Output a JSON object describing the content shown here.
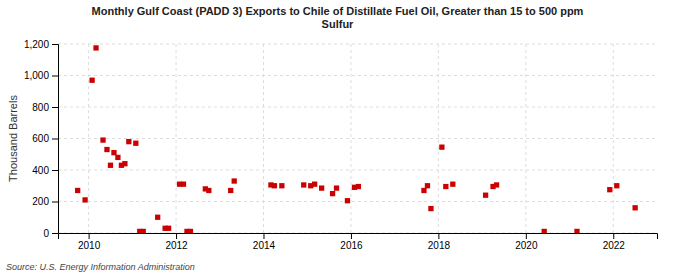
{
  "chart_data": {
    "type": "scatter",
    "title": "Monthly Gulf Coast (PADD 3) Exports to Chile of Distillate Fuel Oil, Greater than 15 to 500 ppm\nSulfur",
    "y_label": "Thousand Barrels",
    "annotations": [
      "Source: U.S. Energy Information Administration"
    ],
    "color": "#cc0000",
    "marker": "square",
    "grid": true,
    "xlim": [
      2009.3,
      2023.0
    ],
    "xticks": [
      2010,
      2012,
      2014,
      2016,
      2018,
      2020,
      2022
    ],
    "ylim": [
      0,
      1200
    ],
    "yticks": [
      0,
      200,
      400,
      600,
      800,
      {
        "value": 1000,
        "label": "1,000"
      },
      {
        "value": 1200,
        "label": "1,200"
      }
    ],
    "x": [
      2009.75,
      2009.92,
      2010.08,
      2010.17,
      2010.33,
      2010.42,
      2010.5,
      2010.58,
      2010.67,
      2010.75,
      2010.83,
      2010.92,
      2011.08,
      2011.17,
      2011.25,
      2011.58,
      2011.75,
      2011.83,
      2012.08,
      2012.17,
      2012.25,
      2012.33,
      2012.67,
      2012.75,
      2013.25,
      2013.33,
      2014.17,
      2014.25,
      2014.42,
      2014.92,
      2015.08,
      2015.17,
      2015.33,
      2015.58,
      2015.67,
      2015.92,
      2016.08,
      2016.17,
      2017.67,
      2017.75,
      2017.83,
      2018.08,
      2018.17,
      2018.33,
      2019.08,
      2019.25,
      2019.33,
      2020.42,
      2021.17,
      2021.92,
      2022.08,
      2022.5
    ],
    "values": [
      270,
      210,
      970,
      1175,
      590,
      530,
      430,
      510,
      480,
      430,
      440,
      580,
      570,
      10,
      10,
      100,
      30,
      30,
      310,
      310,
      10,
      10,
      280,
      270,
      270,
      330,
      305,
      300,
      300,
      305,
      300,
      310,
      285,
      250,
      285,
      205,
      290,
      295,
      270,
      300,
      155,
      545,
      295,
      310,
      240,
      295,
      305,
      10,
      10,
      275,
      300,
      160
    ]
  }
}
